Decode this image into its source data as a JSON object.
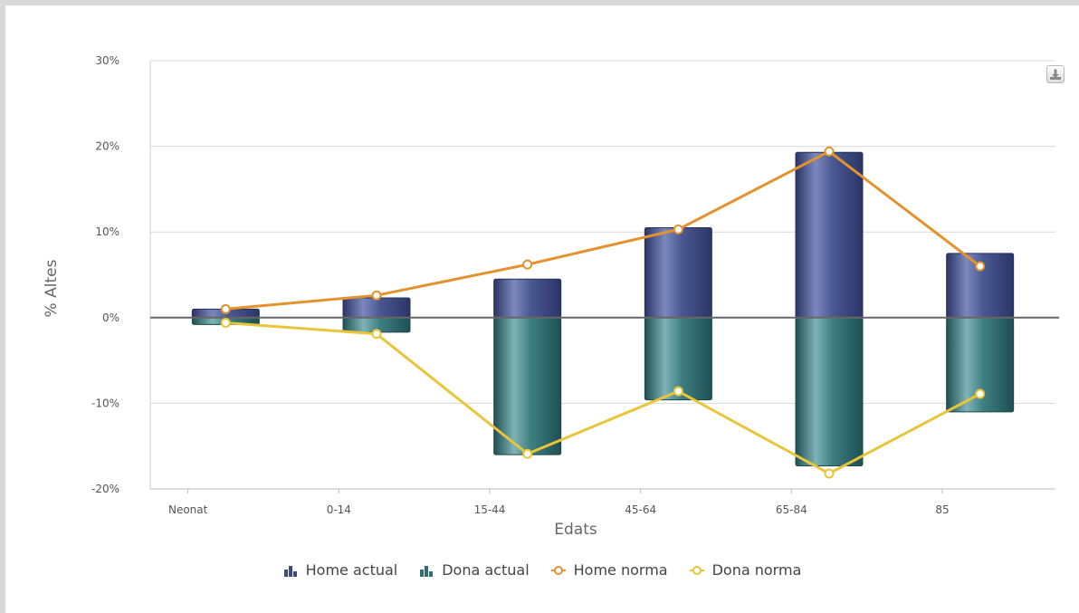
{
  "chart_data": {
    "type": "bar",
    "title": "",
    "xlabel": "Edats",
    "ylabel": "% Altes",
    "categories": [
      "Neonat",
      "0-14",
      "15-44",
      "45-64",
      "65-84",
      "85"
    ],
    "ylim": [
      -20,
      30
    ],
    "yticks": [
      -20,
      -10,
      0,
      10,
      20,
      30
    ],
    "ytick_labels": [
      "-20%",
      "-10%",
      "0%",
      "10%",
      "20%",
      "30%"
    ],
    "grid": true,
    "legend_position": "bottom-center",
    "series": [
      {
        "name": "Home actual",
        "type": "bar",
        "color": "#3d4a80",
        "values": [
          1.0,
          2.3,
          4.5,
          10.5,
          19.3,
          7.5
        ]
      },
      {
        "name": "Dona actual",
        "type": "bar",
        "color": "#2e6e72",
        "values": [
          -0.8,
          -1.7,
          -16.0,
          -9.6,
          -17.3,
          -11.0
        ]
      },
      {
        "name": "Home norma",
        "type": "line",
        "color": "#e3922e",
        "values": [
          1.0,
          2.6,
          6.2,
          10.3,
          19.4,
          6.0
        ]
      },
      {
        "name": "Dona norma",
        "type": "line",
        "color": "#e8c53a",
        "values": [
          -0.6,
          -1.9,
          -15.9,
          -8.6,
          -18.2,
          -8.9
        ]
      }
    ]
  },
  "toolbar": {
    "export_icon": "download-icon"
  }
}
